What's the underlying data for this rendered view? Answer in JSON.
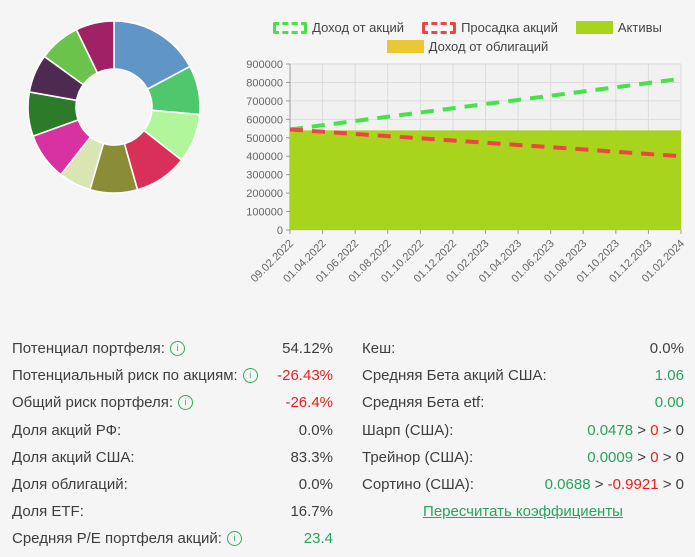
{
  "chart_data": [
    {
      "type": "pie",
      "variant": "donut",
      "title": "",
      "segments": [
        {
          "color": "#6095c8",
          "percent": 17.2
        },
        {
          "color": "#4fc76c",
          "percent": 9.2
        },
        {
          "color": "#b2f69b",
          "percent": 9.2
        },
        {
          "color": "#d93059",
          "percent": 10.0
        },
        {
          "color": "#8b8d36",
          "percent": 8.9
        },
        {
          "color": "#d9e5b3",
          "percent": 6.1
        },
        {
          "color": "#d831a2",
          "percent": 8.9
        },
        {
          "color": "#2b7b28",
          "percent": 8.3
        },
        {
          "color": "#4e2950",
          "percent": 7.2
        },
        {
          "color": "#6cc34b",
          "percent": 7.8
        },
        {
          "color": "#a02166",
          "percent": 7.2
        }
      ]
    },
    {
      "type": "area",
      "title": "",
      "xlabel": "",
      "ylabel": "",
      "ylim": [
        0,
        900000
      ],
      "grid": true,
      "legend_position": "top",
      "y_ticks": [
        0,
        100000,
        200000,
        300000,
        400000,
        500000,
        600000,
        700000,
        800000,
        900000
      ],
      "x": [
        "09.02.2022",
        "01.04.2022",
        "01.06.2022",
        "01.08.2022",
        "01.10.2022",
        "01.12.2022",
        "01.02.2023",
        "01.04.2023",
        "01.06.2023",
        "01.08.2023",
        "01.10.2023",
        "01.12.2023",
        "01.02.2024"
      ],
      "series": [
        {
          "name": "Доход от акций",
          "key": "stock-income",
          "style": "dashed",
          "color": "#47e247",
          "values": [
            545000,
            568000,
            591000,
            614000,
            637000,
            660000,
            683000,
            705000,
            728000,
            751000,
            774000,
            797000,
            820000
          ]
        },
        {
          "name": "Просадка акций",
          "key": "stock-drawdown",
          "style": "dashed",
          "color": "#ef4444",
          "values": [
            545000,
            533000,
            521000,
            509000,
            497000,
            485000,
            473000,
            461000,
            449000,
            437000,
            424000,
            412000,
            400000
          ]
        },
        {
          "name": "Активы",
          "key": "assets",
          "style": "area",
          "color": "#a9d41d",
          "values": [
            540000,
            540000,
            540000,
            540000,
            540000,
            540000,
            540000,
            540000,
            540000,
            540000,
            540000,
            540000,
            540000
          ]
        },
        {
          "name": "Доход от облигаций",
          "key": "bond-income",
          "style": "solid",
          "color": "#eac833",
          "values": [
            0,
            0,
            0,
            0,
            0,
            0,
            0,
            0,
            0,
            0,
            0,
            0,
            0
          ]
        }
      ]
    }
  ],
  "stats": {
    "left": [
      {
        "label": "Потенциал портфеля:",
        "info": true,
        "parts": [
          {
            "text": "54.12%",
            "color": "dark"
          }
        ]
      },
      {
        "label": "Потенциальный риск по акциям:",
        "info": true,
        "parts": [
          {
            "text": "-26.43%",
            "color": "red"
          }
        ]
      },
      {
        "label": "Общий риск портфеля:",
        "info": true,
        "parts": [
          {
            "text": "-26.4%",
            "color": "red"
          }
        ]
      },
      {
        "label": "Доля акций РФ:",
        "info": false,
        "parts": [
          {
            "text": "0.0%",
            "color": "dark"
          }
        ]
      },
      {
        "label": "Доля акций США:",
        "info": false,
        "parts": [
          {
            "text": "83.3%",
            "color": "dark"
          }
        ]
      },
      {
        "label": "Доля облигаций:",
        "info": false,
        "parts": [
          {
            "text": "0.0%",
            "color": "dark"
          }
        ]
      },
      {
        "label": "Доля ETF:",
        "info": false,
        "parts": [
          {
            "text": "16.7%",
            "color": "dark"
          }
        ]
      },
      {
        "label": "Средняя P/E портфеля акций:",
        "info": true,
        "parts": [
          {
            "text": "23.4",
            "color": "green"
          }
        ]
      }
    ],
    "right": [
      {
        "label": "Кеш:",
        "info": false,
        "parts": [
          {
            "text": "0.0%",
            "color": "dark"
          }
        ]
      },
      {
        "label": "Средняя Бета акций США:",
        "info": false,
        "parts": [
          {
            "text": "1.06",
            "color": "green"
          }
        ]
      },
      {
        "label": "Средняя Бета etf:",
        "info": false,
        "parts": [
          {
            "text": "0.00",
            "color": "green"
          }
        ]
      },
      {
        "label": "Шарп (США):",
        "info": false,
        "parts": [
          {
            "text": "0.0478",
            "color": "green"
          },
          {
            "text": " > ",
            "color": "dark"
          },
          {
            "text": "0",
            "color": "red"
          },
          {
            "text": " > ",
            "color": "dark"
          },
          {
            "text": "0",
            "color": "dark"
          }
        ]
      },
      {
        "label": "Трейнор (США):",
        "info": false,
        "parts": [
          {
            "text": "0.0009",
            "color": "green"
          },
          {
            "text": " > ",
            "color": "dark"
          },
          {
            "text": "0",
            "color": "red"
          },
          {
            "text": " > ",
            "color": "dark"
          },
          {
            "text": "0",
            "color": "dark"
          }
        ]
      },
      {
        "label": "Сортино (США):",
        "info": false,
        "parts": [
          {
            "text": "0.0688",
            "color": "green"
          },
          {
            "text": " > ",
            "color": "dark"
          },
          {
            "text": "-0.9921",
            "color": "red"
          },
          {
            "text": " > ",
            "color": "dark"
          },
          {
            "text": "0",
            "color": "dark"
          }
        ]
      }
    ],
    "link_label": "Пересчитать коэффициенты"
  },
  "colors": {
    "page_bg": "#f5f5f5",
    "plot_bg": "#f1f1f1",
    "gridline": "#dcdcdc",
    "axis": "#9a9a9a",
    "tick_text": "#666666",
    "value_red": "#e52020",
    "value_green": "#27a35c",
    "text_dark": "#3e3e3e"
  }
}
